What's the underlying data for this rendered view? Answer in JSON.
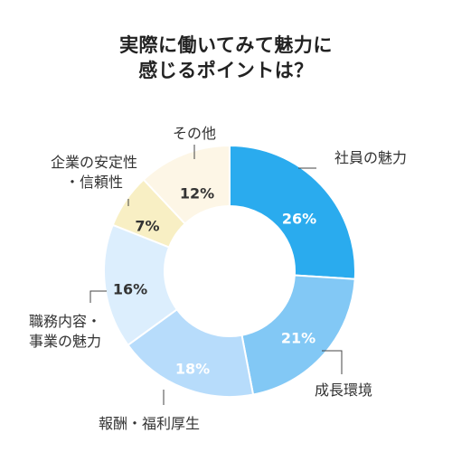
{
  "chart_data": {
    "type": "pie",
    "title_lines": [
      "実際に働いてみて魅力に",
      "感じるポイントは？"
    ],
    "categories": [
      "社員の魅力",
      "成長環境",
      "報酬・福利厚生",
      "職務内容・事業の魅力",
      "企業の安定性・信頼性",
      "その他"
    ],
    "label_lines": [
      [
        "社員の魅力"
      ],
      [
        "成長環境"
      ],
      [
        "報酬・福利厚生"
      ],
      [
        "職務内容・",
        "事業の魅力"
      ],
      [
        "企業の安定性",
        "・信頼性"
      ],
      [
        "その他"
      ]
    ],
    "values": [
      26,
      21,
      18,
      16,
      7,
      12
    ],
    "value_labels": [
      "26%",
      "21%",
      "18%",
      "16%",
      "7%",
      "12%"
    ],
    "colors": [
      "#2aabee",
      "#82c8f5",
      "#b7dcfb",
      "#dceefd",
      "#f8efc4",
      "#fdf6e6"
    ],
    "value_label_colors": [
      "#ffffff",
      "#ffffff",
      "#ffffff",
      "#333333",
      "#333333",
      "#333333"
    ]
  }
}
